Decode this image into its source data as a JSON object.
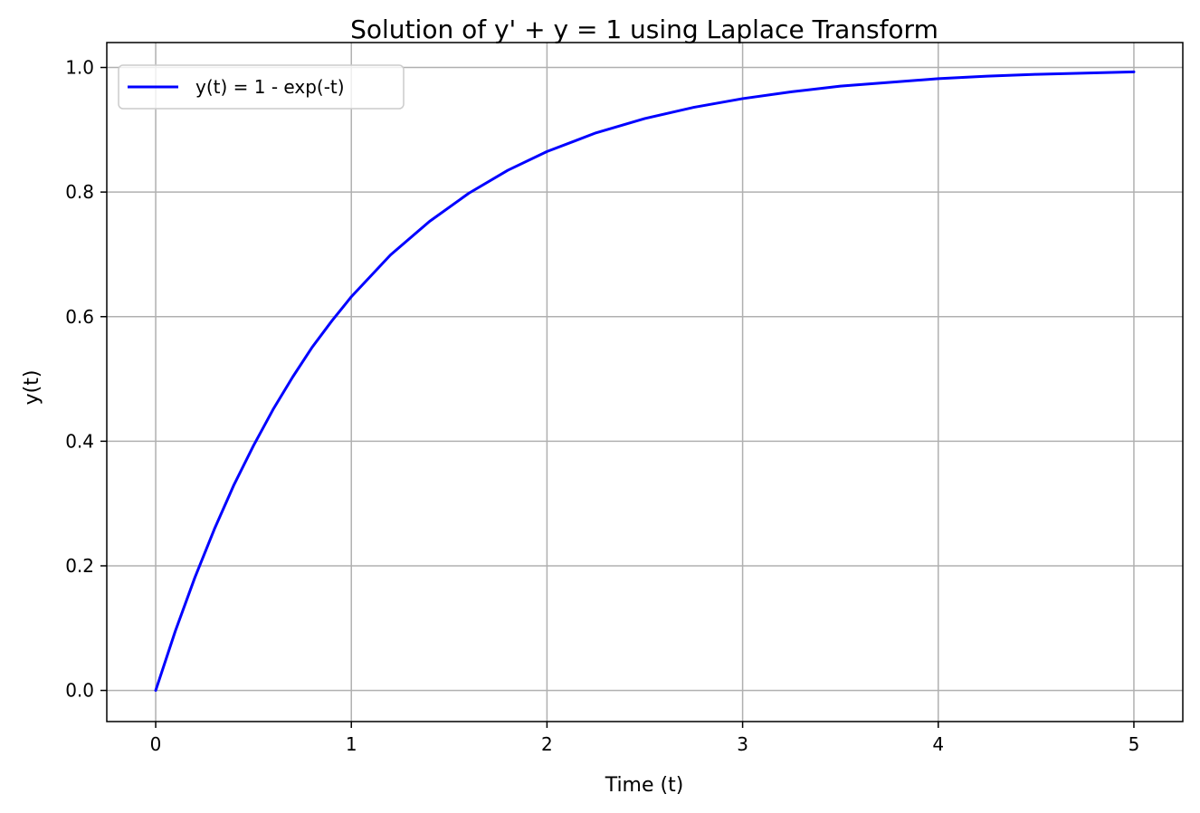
{
  "chart_data": {
    "type": "line",
    "title": "Solution of y' + y = 1 using Laplace Transform",
    "xlabel": "Time (t)",
    "ylabel": "y(t)",
    "xlim": [
      -0.25,
      5.25
    ],
    "ylim": [
      -0.05,
      1.04
    ],
    "x_ticks": [
      0,
      1,
      2,
      3,
      4,
      5
    ],
    "x_tick_labels": [
      "0",
      "1",
      "2",
      "3",
      "4",
      "5"
    ],
    "y_ticks": [
      0.0,
      0.2,
      0.4,
      0.6,
      0.8,
      1.0
    ],
    "y_tick_labels": [
      "0.0",
      "0.2",
      "0.4",
      "0.6",
      "0.8",
      "1.0"
    ],
    "grid": true,
    "legend_position": "top-left",
    "series": [
      {
        "name": "y(t) = 1 - exp(-t)",
        "color": "#0000ff",
        "x": [
          0,
          0.1,
          0.2,
          0.3,
          0.4,
          0.5,
          0.6,
          0.7,
          0.8,
          0.9,
          1.0,
          1.2,
          1.4,
          1.6,
          1.8,
          2.0,
          2.25,
          2.5,
          2.75,
          3.0,
          3.25,
          3.5,
          3.75,
          4.0,
          4.25,
          4.5,
          4.75,
          5.0
        ],
        "y": [
          0.0,
          0.095,
          0.181,
          0.259,
          0.33,
          0.393,
          0.451,
          0.503,
          0.551,
          0.593,
          0.632,
          0.699,
          0.753,
          0.798,
          0.835,
          0.865,
          0.895,
          0.918,
          0.936,
          0.95,
          0.961,
          0.97,
          0.976,
          0.982,
          0.986,
          0.989,
          0.991,
          0.993
        ]
      }
    ]
  }
}
